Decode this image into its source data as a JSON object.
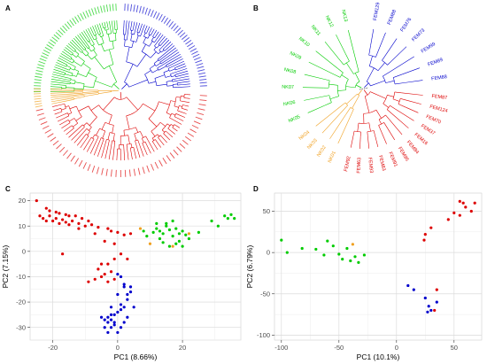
{
  "figure": {
    "panel_labels": [
      "A",
      "B",
      "C",
      "D"
    ]
  },
  "colors": {
    "green": "#00cc00",
    "blue": "#0000cc",
    "red": "#dd0000",
    "orange": "#f0a020"
  },
  "tree_b": {
    "leaf_labels": [
      {
        "label": "FEM129",
        "group": "blue"
      },
      {
        "label": "FEM88",
        "group": "blue"
      },
      {
        "label": "FEM76",
        "group": "blue"
      },
      {
        "label": "FEM73",
        "group": "blue"
      },
      {
        "label": "FEM99",
        "group": "blue"
      },
      {
        "label": "FEM89",
        "group": "blue"
      },
      {
        "label": "FEM88",
        "group": "blue"
      },
      {
        "label": "FEM87",
        "group": "red"
      },
      {
        "label": "FEM124",
        "group": "red"
      },
      {
        "label": "FEM70",
        "group": "red"
      },
      {
        "label": "FEM37",
        "group": "red"
      },
      {
        "label": "FEM16",
        "group": "red"
      },
      {
        "label": "FEM84",
        "group": "red"
      },
      {
        "label": "FEM95",
        "group": "red"
      },
      {
        "label": "FEM91",
        "group": "red"
      },
      {
        "label": "FEM83",
        "group": "red"
      },
      {
        "label": "FEM93",
        "group": "red"
      },
      {
        "label": "FEM63",
        "group": "red"
      },
      {
        "label": "FEM92",
        "group": "red"
      },
      {
        "label": "NK01",
        "group": "orange"
      },
      {
        "label": "NK02",
        "group": "orange"
      },
      {
        "label": "NK03",
        "group": "orange"
      },
      {
        "label": "NK04",
        "group": "orange"
      },
      {
        "label": "NK05",
        "group": "green"
      },
      {
        "label": "NK06",
        "group": "green"
      },
      {
        "label": "NK07",
        "group": "green"
      },
      {
        "label": "NK08",
        "group": "green"
      },
      {
        "label": "NK09",
        "group": "green"
      },
      {
        "label": "NK10",
        "group": "green"
      },
      {
        "label": "NK11",
        "group": "green"
      },
      {
        "label": "NK12",
        "group": "green"
      },
      {
        "label": "NK13",
        "group": "green"
      }
    ]
  },
  "chart_data": [
    {
      "panel": "C",
      "type": "scatter",
      "xlabel": "PC1 (8.66%)",
      "ylabel": "PC2 (7.15%)",
      "xlim": [
        -27,
        38
      ],
      "ylim": [
        -35,
        23
      ],
      "xticks": [
        -20,
        0,
        20
      ],
      "yticks": [
        20,
        10,
        0,
        -10,
        -20,
        -30
      ],
      "xtick_labels": [
        "-20",
        "0",
        "20"
      ],
      "ytick_labels": [
        "20",
        "10",
        "0",
        "-10",
        "-20",
        "-30"
      ],
      "grid": true,
      "series": [
        {
          "color": "red",
          "points": [
            [
              -25,
              20
            ],
            [
              -22,
              17
            ],
            [
              -21,
              16
            ],
            [
              -19,
              15.5
            ],
            [
              -18,
              15
            ],
            [
              -16,
              14.5
            ],
            [
              -15,
              14
            ],
            [
              -13,
              14
            ],
            [
              -11,
              13
            ],
            [
              -9,
              12
            ],
            [
              -23,
              13
            ],
            [
              -21,
              14
            ],
            [
              -20,
              12
            ],
            [
              -19,
              13
            ],
            [
              -17,
              12.5
            ],
            [
              -16,
              11.5
            ],
            [
              -14,
              12
            ],
            [
              -12,
              11
            ],
            [
              -10,
              10
            ],
            [
              -8,
              10.5
            ],
            [
              -6,
              9.5
            ],
            [
              -3,
              9
            ],
            [
              -2,
              8
            ],
            [
              0,
              7.5
            ],
            [
              -24,
              14
            ],
            [
              -22,
              12
            ],
            [
              -18,
              11
            ],
            [
              -15,
              10.5
            ],
            [
              -12,
              9
            ],
            [
              -7,
              7
            ],
            [
              2,
              6.5
            ],
            [
              4,
              7
            ],
            [
              -4,
              4
            ],
            [
              -1,
              3
            ],
            [
              1,
              -1
            ],
            [
              3,
              -3
            ],
            [
              -3,
              -5
            ],
            [
              -6,
              -7
            ],
            [
              -4,
              -9
            ],
            [
              -2,
              -8
            ],
            [
              -5,
              -10
            ],
            [
              -3,
              -12
            ],
            [
              -7,
              -11
            ],
            [
              -1,
              -11
            ],
            [
              -9,
              -12
            ],
            [
              -1,
              -3
            ],
            [
              -5,
              -5
            ],
            [
              -17,
              -1
            ]
          ]
        },
        {
          "color": "blue",
          "points": [
            [
              0,
              -9
            ],
            [
              1,
              -10
            ],
            [
              2,
              -13
            ],
            [
              4,
              -14
            ],
            [
              4,
              -16
            ],
            [
              3,
              -17
            ],
            [
              1,
              -21
            ],
            [
              2,
              -22
            ],
            [
              1,
              -23
            ],
            [
              0,
              -24
            ],
            [
              -1,
              -25
            ],
            [
              -2,
              -25
            ],
            [
              -3,
              -26
            ],
            [
              -4,
              -27
            ],
            [
              -2,
              -27
            ],
            [
              -3,
              -28
            ],
            [
              -1,
              -29
            ],
            [
              -2,
              -30
            ],
            [
              -4,
              -30
            ],
            [
              -3,
              -32
            ],
            [
              0,
              -32
            ],
            [
              1,
              -30
            ],
            [
              3,
              -26
            ],
            [
              5,
              -22
            ],
            [
              3,
              -19
            ],
            [
              2,
              -14
            ],
            [
              0,
              -17
            ],
            [
              -2,
              -22
            ],
            [
              -5,
              -26
            ],
            [
              -1,
              -28
            ],
            [
              2,
              -28
            ]
          ]
        },
        {
          "color": "green",
          "points": [
            [
              8,
              8
            ],
            [
              9,
              6
            ],
            [
              11,
              7.5
            ],
            [
              12,
              9
            ],
            [
              13,
              5
            ],
            [
              14,
              7
            ],
            [
              15,
              10
            ],
            [
              16,
              8.5
            ],
            [
              17,
              6
            ],
            [
              18,
              9
            ],
            [
              19,
              7
            ],
            [
              20,
              8
            ],
            [
              21,
              6.5
            ],
            [
              14,
              3.5
            ],
            [
              16,
              2
            ],
            [
              18,
              3
            ],
            [
              19,
              4
            ],
            [
              20,
              2
            ],
            [
              22,
              5
            ],
            [
              25,
              7.5
            ],
            [
              29,
              12
            ],
            [
              31,
              10
            ],
            [
              33,
              14
            ],
            [
              34,
              13
            ],
            [
              35,
              14.5
            ],
            [
              36,
              13
            ],
            [
              12,
              11
            ],
            [
              15,
              11
            ],
            [
              17,
              12
            ],
            [
              13,
              8
            ]
          ]
        },
        {
          "color": "orange",
          "points": [
            [
              7,
              9
            ],
            [
              10,
              3
            ],
            [
              17,
              2
            ],
            [
              22,
              7
            ]
          ]
        }
      ]
    },
    {
      "panel": "D",
      "type": "scatter",
      "xlabel": "PC1 (10.1%)",
      "ylabel": "PC2 (6.79%)",
      "xlim": [
        -106,
        74
      ],
      "ylim": [
        -106,
        72
      ],
      "xticks": [
        -100,
        -50,
        0,
        50
      ],
      "yticks": [
        50,
        0,
        -50,
        -100
      ],
      "xtick_labels": [
        "-100",
        "-50",
        "0",
        "50"
      ],
      "ytick_labels": [
        "50",
        "0",
        "-50",
        "-100"
      ],
      "grid": true,
      "series": [
        {
          "color": "red",
          "points": [
            [
              55,
              62
            ],
            [
              58,
              60
            ],
            [
              60,
              55
            ],
            [
              65,
              50
            ],
            [
              50,
              48
            ],
            [
              55,
              45
            ],
            [
              68,
              60
            ],
            [
              45,
              40
            ],
            [
              30,
              30
            ],
            [
              25,
              22
            ],
            [
              24,
              15
            ],
            [
              35,
              -45
            ],
            [
              33,
              -70
            ]
          ]
        },
        {
          "color": "blue",
          "points": [
            [
              10,
              -40
            ],
            [
              15,
              -45
            ],
            [
              25,
              -55
            ],
            [
              28,
              -65
            ],
            [
              30,
              -70
            ],
            [
              35,
              -60
            ],
            [
              27,
              -72
            ]
          ]
        },
        {
          "color": "green",
          "points": [
            [
              -100,
              15
            ],
            [
              -95,
              0
            ],
            [
              -82,
              5
            ],
            [
              -70,
              4
            ],
            [
              -63,
              -3
            ],
            [
              -55,
              8
            ],
            [
              -50,
              -2
            ],
            [
              -47,
              -8
            ],
            [
              -43,
              5
            ],
            [
              -40,
              -10
            ],
            [
              -36,
              -5
            ],
            [
              -33,
              -12
            ],
            [
              -28,
              -3
            ],
            [
              -60,
              14
            ]
          ]
        },
        {
          "color": "orange",
          "points": [
            [
              -38,
              10
            ]
          ]
        }
      ]
    }
  ]
}
